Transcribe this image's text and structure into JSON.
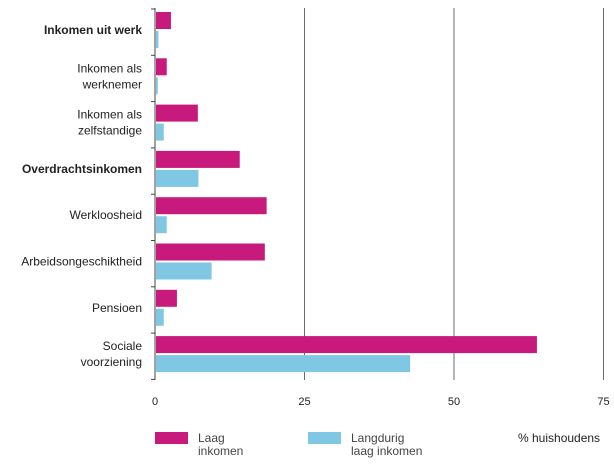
{
  "chart_data": {
    "type": "bar",
    "orientation": "horizontal",
    "categories": [
      {
        "label": "Inkomen uit werk",
        "bold": true
      },
      {
        "label": "Inkomen als\nwerknemer",
        "bold": false
      },
      {
        "label": "Inkomen als\nzelfstandige",
        "bold": false
      },
      {
        "label": "Overdrachtsinkomen",
        "bold": true
      },
      {
        "label": "Werkloosheid",
        "bold": false
      },
      {
        "label": "Arbeidsongeschiktheid",
        "bold": false
      },
      {
        "label": "Pensioen",
        "bold": false
      },
      {
        "label": "Sociale\nvoorziening",
        "bold": false
      }
    ],
    "series": [
      {
        "name": "Laag inkomen",
        "values": [
          2.5,
          1.8,
          7.0,
          14.0,
          18.5,
          18.2,
          3.5,
          63.7
        ]
      },
      {
        "name": "Langdurig laag inkomen",
        "values": [
          0.4,
          0.3,
          1.3,
          7.1,
          1.8,
          9.3,
          1.3,
          42.5
        ]
      }
    ],
    "xlim": [
      0,
      75
    ],
    "xticks": [
      0,
      25,
      50,
      75
    ],
    "xlabel": "% huishoudens",
    "grid": "vertical",
    "legend_position": "bottom",
    "colors": {
      "series_1": "#c8197c",
      "series_2": "#80c7e4"
    }
  },
  "legend": {
    "item1_line1": "Laag",
    "item1_line2": "inkomen",
    "item2_line1": "Langdurig",
    "item2_line2": "laag inkomen",
    "unit_label": "% huishoudens"
  }
}
